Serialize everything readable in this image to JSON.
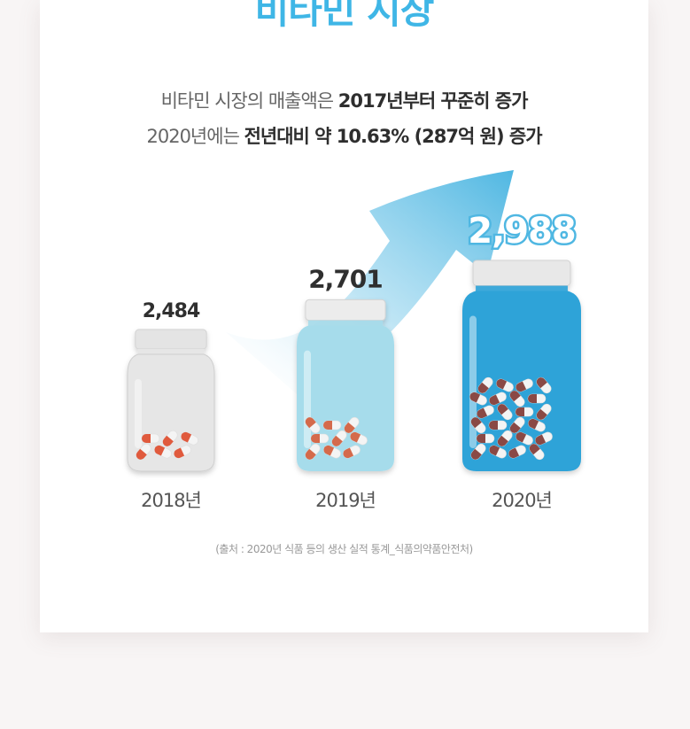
{
  "title": "비타민 시장",
  "subtitle": {
    "line1_plain": "비타민 시장의 매출액은 ",
    "line1_bold": "2017년부터 꾸준히 증가",
    "line2_plain": "2020년에는 ",
    "line2_bold": "전년대비 약 10.63% (287억 원) 증가"
  },
  "source": "(출처 : 2020년 식품 등의 생산 실적 통계_식품의약품안전처)",
  "colors": {
    "title": "#3fb6e6",
    "jar_2018": "#e6e6e6",
    "jar_2019": "#a6dceb",
    "jar_2020": "#2fa3d8",
    "pill_2018": "#e05a3e",
    "pill_2019": "#d46a4c",
    "pill_2020": "#8a4a44",
    "arrow": "#4fb7e2"
  },
  "chart_data": {
    "type": "bar",
    "categories": [
      "2018년",
      "2019년",
      "2020년"
    ],
    "values": [
      2484,
      2701,
      2988
    ],
    "value_labels": [
      "2,484",
      "2,701",
      "2,988"
    ],
    "title": "",
    "xlabel": "",
    "ylabel": "",
    "grid": false,
    "legend": "none"
  }
}
